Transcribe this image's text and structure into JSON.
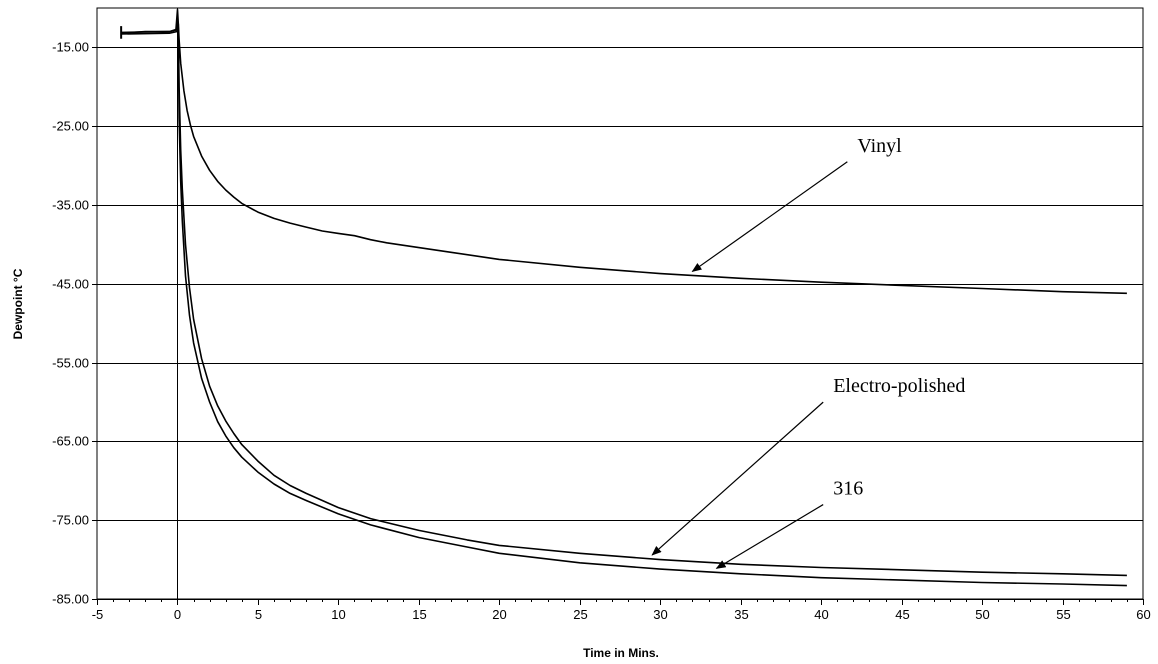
{
  "chart_data": {
    "type": "line",
    "title": "",
    "xlabel": "Time in Mins.",
    "ylabel": "Dewpoint °C",
    "xlim": [
      -5,
      60
    ],
    "ylim": [
      -85,
      -10
    ],
    "x_ticks": [
      -5,
      0,
      5,
      10,
      15,
      20,
      25,
      30,
      35,
      40,
      45,
      50,
      55,
      60
    ],
    "y_ticks": [
      -85,
      -75,
      -65,
      -55,
      -45,
      -35,
      -25,
      -15
    ],
    "x_tick_labels": [
      "-5",
      "0",
      "5",
      "10",
      "15",
      "20",
      "25",
      "30",
      "35",
      "40",
      "45",
      "50",
      "55",
      "60"
    ],
    "y_tick_labels": [
      "-85.00",
      "-75.00",
      "-65.00",
      "-55.00",
      "-45.00",
      "-35.00",
      "-25.00",
      "-15.00"
    ],
    "grid": "horizontal",
    "series": [
      {
        "name": "Vinyl",
        "x": [
          -3.5,
          -2,
          -0.5,
          -0.1,
          0,
          0.05,
          0.1,
          0.2,
          0.4,
          0.6,
          0.8,
          1,
          1.5,
          2,
          2.5,
          3,
          3.5,
          4,
          5,
          6,
          7,
          8,
          9,
          10,
          11,
          12,
          13,
          15,
          17,
          20,
          25,
          30,
          35,
          40,
          45,
          50,
          55,
          59
        ],
        "y": [
          -13.2,
          -13.0,
          -13.0,
          -12.8,
          -10.2,
          -12,
          -14,
          -17,
          -20.5,
          -23,
          -24.8,
          -26.3,
          -28.8,
          -30.6,
          -32,
          -33.1,
          -34,
          -34.8,
          -35.9,
          -36.7,
          -37.3,
          -37.8,
          -38.3,
          -38.6,
          -38.9,
          -39.4,
          -39.8,
          -40.4,
          -41,
          -41.9,
          -42.9,
          -43.7,
          -44.3,
          -44.8,
          -45.2,
          -45.6,
          -46.0,
          -46.2
        ]
      },
      {
        "name": "Electro-polished",
        "x": [
          -3.5,
          -0.5,
          -0.05,
          0.05,
          0.1,
          0.2,
          0.3,
          0.5,
          0.75,
          1,
          1.5,
          2,
          2.5,
          3,
          3.5,
          4,
          5,
          6,
          7,
          8,
          10,
          12,
          15,
          18,
          20,
          25,
          30,
          35,
          40,
          45,
          50,
          55,
          59
        ],
        "y": [
          -13.1,
          -13.0,
          -12.7,
          -12,
          -20,
          -28,
          -33,
          -40,
          -45.5,
          -49.5,
          -54.5,
          -58,
          -60.5,
          -62.4,
          -64,
          -65.4,
          -67.5,
          -69.3,
          -70.6,
          -71.6,
          -73.4,
          -74.8,
          -76.3,
          -77.5,
          -78.2,
          -79.2,
          -80.0,
          -80.6,
          -81.0,
          -81.3,
          -81.6,
          -81.8,
          -82.0
        ]
      },
      {
        "name": "316",
        "x": [
          -3.5,
          -0.5,
          -0.05,
          0.05,
          0.1,
          0.2,
          0.3,
          0.5,
          0.75,
          1,
          1.5,
          2,
          2.5,
          3,
          3.5,
          4,
          5,
          6,
          7,
          8,
          10,
          12,
          15,
          18,
          20,
          25,
          30,
          35,
          40,
          45,
          50,
          55,
          59
        ],
        "y": [
          -13.3,
          -13.2,
          -13.0,
          -12.5,
          -24,
          -32,
          -37,
          -44,
          -49,
          -52.5,
          -57,
          -60,
          -62.5,
          -64.3,
          -65.8,
          -67,
          -68.9,
          -70.4,
          -71.6,
          -72.5,
          -74.2,
          -75.6,
          -77.2,
          -78.4,
          -79.2,
          -80.4,
          -81.2,
          -81.8,
          -82.3,
          -82.6,
          -82.9,
          -83.1,
          -83.3
        ]
      }
    ],
    "annotations": [
      {
        "text": "Vinyl",
        "series": "Vinyl",
        "at_x": 32,
        "label_x": 42,
        "label_y": -28.5
      },
      {
        "text": "Electro-polished",
        "series": "Electro-polished",
        "at_x": 29.5,
        "label_x": 40.5,
        "label_y": -59
      },
      {
        "text": "316",
        "series": "316",
        "at_x": 33.5,
        "label_x": 40.5,
        "label_y": -72
      }
    ]
  }
}
